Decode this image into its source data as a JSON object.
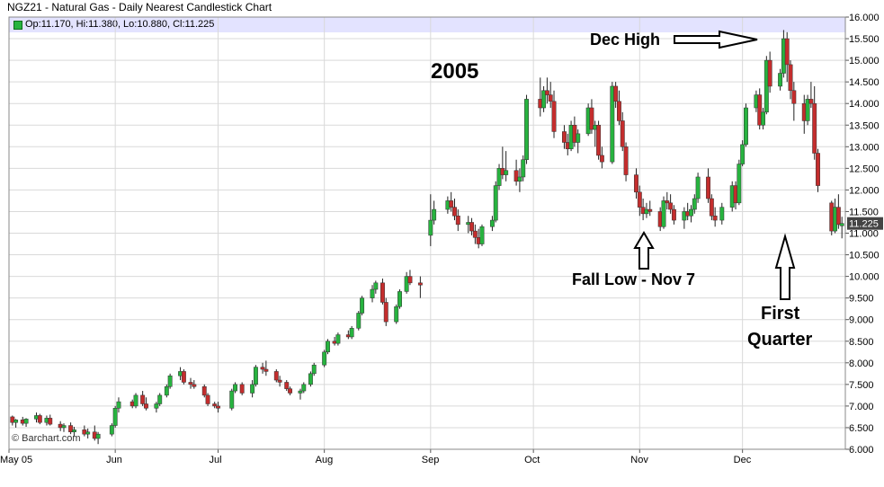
{
  "chart_data": {
    "type": "candlestick",
    "title": "NGZ21 - Natural Gas - Daily Nearest Candlestick Chart",
    "ohlc_legend": "Op:11.170, Hi:11.380, Lo:10.880, Cl:11.225",
    "last_price_label": "11.225",
    "copyright": "© Barchart.com",
    "ylim": [
      6.0,
      16.0
    ],
    "yticks": [
      "6.000",
      "6.500",
      "7.000",
      "7.500",
      "8.000",
      "8.500",
      "9.000",
      "9.500",
      "10.000",
      "10.500",
      "11.000",
      "11.500",
      "12.000",
      "12.500",
      "13.000",
      "13.500",
      "14.000",
      "14.500",
      "15.000",
      "15.500",
      "16.000"
    ],
    "x_labels": [
      {
        "label": "May 05",
        "date": "2005-05-01"
      },
      {
        "label": "Jun",
        "date": "2005-06-01"
      },
      {
        "label": "Jul",
        "date": "2005-07-01"
      },
      {
        "label": "Aug",
        "date": "2005-08-01"
      },
      {
        "label": "Sep",
        "date": "2005-09-01"
      },
      {
        "label": "Oct",
        "date": "2005-10-01"
      },
      {
        "label": "Nov",
        "date": "2005-11-01"
      },
      {
        "label": "Dec",
        "date": "2005-12-01"
      }
    ],
    "x_range": [
      "2005-05-01",
      "2005-12-31"
    ],
    "grid": true,
    "candles": [
      [
        "2005-05-02",
        6.75,
        6.78,
        6.55,
        6.62
      ],
      [
        "2005-05-03",
        6.62,
        6.7,
        6.5,
        6.68
      ],
      [
        "2005-05-05",
        6.68,
        6.75,
        6.55,
        6.6
      ],
      [
        "2005-05-06",
        6.6,
        6.72,
        6.52,
        6.7
      ],
      [
        "2005-05-09",
        6.7,
        6.85,
        6.62,
        6.78
      ],
      [
        "2005-05-10",
        6.78,
        6.82,
        6.58,
        6.62
      ],
      [
        "2005-05-12",
        6.62,
        6.78,
        6.55,
        6.72
      ],
      [
        "2005-05-13",
        6.72,
        6.8,
        6.55,
        6.58
      ],
      [
        "2005-05-16",
        6.58,
        6.65,
        6.42,
        6.5
      ],
      [
        "2005-05-17",
        6.5,
        6.6,
        6.4,
        6.55
      ],
      [
        "2005-05-19",
        6.55,
        6.62,
        6.35,
        6.4
      ],
      [
        "2005-05-20",
        6.4,
        6.52,
        6.3,
        6.45
      ],
      [
        "2005-05-23",
        6.45,
        6.55,
        6.3,
        6.35
      ],
      [
        "2005-05-24",
        6.35,
        6.48,
        6.25,
        6.4
      ],
      [
        "2005-05-26",
        6.4,
        6.55,
        6.2,
        6.25
      ],
      [
        "2005-05-27",
        6.25,
        6.4,
        6.12,
        6.35
      ],
      [
        "2005-05-31",
        6.35,
        6.6,
        6.3,
        6.55
      ],
      [
        "2005-06-01",
        6.55,
        7.0,
        6.5,
        6.95
      ],
      [
        "2005-06-02",
        6.95,
        7.2,
        6.85,
        7.1
      ],
      [
        "2005-06-06",
        7.1,
        7.15,
        6.95,
        7.0
      ],
      [
        "2005-06-07",
        7.0,
        7.3,
        6.95,
        7.25
      ],
      [
        "2005-06-09",
        7.25,
        7.35,
        7.0,
        7.05
      ],
      [
        "2005-06-10",
        7.05,
        7.2,
        6.9,
        6.95
      ],
      [
        "2005-06-13",
        6.95,
        7.1,
        6.85,
        7.05
      ],
      [
        "2005-06-14",
        7.05,
        7.3,
        7.0,
        7.25
      ],
      [
        "2005-06-16",
        7.25,
        7.5,
        7.2,
        7.45
      ],
      [
        "2005-06-17",
        7.45,
        7.75,
        7.4,
        7.7
      ],
      [
        "2005-06-20",
        7.7,
        7.9,
        7.6,
        7.8
      ],
      [
        "2005-06-21",
        7.8,
        7.85,
        7.5,
        7.55
      ],
      [
        "2005-06-23",
        7.55,
        7.65,
        7.4,
        7.5
      ],
      [
        "2005-06-24",
        7.5,
        7.6,
        7.4,
        7.45
      ],
      [
        "2005-06-27",
        7.45,
        7.5,
        7.2,
        7.25
      ],
      [
        "2005-06-28",
        7.25,
        7.3,
        7.0,
        7.05
      ],
      [
        "2005-06-30",
        7.05,
        7.1,
        6.95,
        7.0
      ],
      [
        "2005-07-01",
        7.0,
        7.1,
        6.85,
        6.95
      ],
      [
        "2005-07-05",
        6.95,
        7.4,
        6.9,
        7.35
      ],
      [
        "2005-07-06",
        7.35,
        7.55,
        7.3,
        7.5
      ],
      [
        "2005-07-08",
        7.5,
        7.55,
        7.25,
        7.3
      ],
      [
        "2005-07-11",
        7.3,
        7.6,
        7.2,
        7.5
      ],
      [
        "2005-07-12",
        7.5,
        7.95,
        7.45,
        7.9
      ],
      [
        "2005-07-14",
        7.9,
        8.0,
        7.75,
        7.85
      ],
      [
        "2005-07-15",
        7.85,
        8.05,
        7.7,
        7.8
      ],
      [
        "2005-07-18",
        7.8,
        7.85,
        7.55,
        7.6
      ],
      [
        "2005-07-19",
        7.6,
        7.7,
        7.45,
        7.55
      ],
      [
        "2005-07-21",
        7.55,
        7.6,
        7.35,
        7.4
      ],
      [
        "2005-07-22",
        7.4,
        7.45,
        7.25,
        7.3
      ],
      [
        "2005-07-25",
        7.3,
        7.4,
        7.15,
        7.35
      ],
      [
        "2005-07-26",
        7.35,
        7.55,
        7.3,
        7.5
      ],
      [
        "2005-07-28",
        7.5,
        7.8,
        7.45,
        7.75
      ],
      [
        "2005-07-29",
        7.75,
        8.0,
        7.7,
        7.95
      ],
      [
        "2005-08-01",
        7.95,
        8.3,
        7.9,
        8.25
      ],
      [
        "2005-08-02",
        8.25,
        8.55,
        8.2,
        8.5
      ],
      [
        "2005-08-04",
        8.5,
        8.6,
        8.4,
        8.45
      ],
      [
        "2005-08-05",
        8.45,
        8.7,
        8.4,
        8.65
      ],
      [
        "2005-08-08",
        8.65,
        8.75,
        8.55,
        8.6
      ],
      [
        "2005-08-09",
        8.6,
        8.85,
        8.55,
        8.8
      ],
      [
        "2005-08-11",
        8.8,
        9.2,
        8.75,
        9.15
      ],
      [
        "2005-08-12",
        9.15,
        9.55,
        9.1,
        9.5
      ],
      [
        "2005-08-15",
        9.5,
        9.8,
        9.4,
        9.7
      ],
      [
        "2005-08-16",
        9.7,
        9.9,
        9.6,
        9.85
      ],
      [
        "2005-08-18",
        9.85,
        9.95,
        9.35,
        9.4
      ],
      [
        "2005-08-19",
        9.4,
        9.5,
        8.85,
        8.95
      ],
      [
        "2005-08-22",
        8.95,
        9.35,
        8.9,
        9.3
      ],
      [
        "2005-08-23",
        9.3,
        9.7,
        9.25,
        9.65
      ],
      [
        "2005-08-25",
        9.65,
        10.1,
        9.6,
        10.0
      ],
      [
        "2005-08-26",
        10.0,
        10.15,
        9.8,
        9.85
      ],
      [
        "2005-08-29",
        9.85,
        10.0,
        9.5,
        9.8
      ],
      [
        "2005-09-01",
        10.95,
        11.9,
        10.7,
        11.3
      ],
      [
        "2005-09-02",
        11.3,
        11.75,
        11.2,
        11.55
      ],
      [
        "2005-09-06",
        11.55,
        11.85,
        11.45,
        11.75
      ],
      [
        "2005-09-07",
        11.75,
        11.95,
        11.5,
        11.6
      ],
      [
        "2005-09-08",
        11.6,
        11.8,
        11.3,
        11.4
      ],
      [
        "2005-09-09",
        11.4,
        11.55,
        11.05,
        11.2
      ],
      [
        "2005-09-12",
        11.2,
        11.4,
        11.0,
        11.25
      ],
      [
        "2005-09-13",
        11.25,
        11.35,
        10.95,
        11.05
      ],
      [
        "2005-09-14",
        11.05,
        11.2,
        10.75,
        10.9
      ],
      [
        "2005-09-15",
        10.9,
        11.1,
        10.65,
        10.75
      ],
      [
        "2005-09-16",
        10.75,
        11.2,
        10.7,
        11.15
      ],
      [
        "2005-09-19",
        11.15,
        11.4,
        11.05,
        11.3
      ],
      [
        "2005-09-20",
        11.3,
        12.2,
        11.25,
        12.1
      ],
      [
        "2005-09-21",
        12.1,
        12.6,
        12.0,
        12.5
      ],
      [
        "2005-09-22",
        12.5,
        13.0,
        12.25,
        12.35
      ],
      [
        "2005-09-23",
        12.35,
        12.9,
        12.2,
        12.45
      ],
      [
        "2005-09-26",
        12.45,
        12.7,
        12.1,
        12.2
      ],
      [
        "2005-09-27",
        12.2,
        12.5,
        11.95,
        12.3
      ],
      [
        "2005-09-28",
        12.3,
        12.8,
        12.2,
        12.7
      ],
      [
        "2005-09-29",
        12.7,
        14.2,
        12.6,
        14.1
      ],
      [
        "2005-10-03",
        14.1,
        14.6,
        13.7,
        13.9
      ],
      [
        "2005-10-04",
        13.9,
        14.4,
        13.8,
        14.3
      ],
      [
        "2005-10-05",
        14.3,
        14.6,
        14.0,
        14.2
      ],
      [
        "2005-10-06",
        14.2,
        14.5,
        13.9,
        14.05
      ],
      [
        "2005-10-07",
        14.05,
        14.3,
        13.2,
        13.35
      ],
      [
        "2005-10-10",
        13.35,
        13.5,
        12.95,
        13.1
      ],
      [
        "2005-10-11",
        13.1,
        13.3,
        12.8,
        12.95
      ],
      [
        "2005-10-12",
        12.95,
        13.6,
        12.9,
        13.5
      ],
      [
        "2005-10-13",
        13.5,
        13.7,
        13.0,
        13.1
      ],
      [
        "2005-10-14",
        13.1,
        13.4,
        12.85,
        13.3
      ],
      [
        "2005-10-17",
        13.3,
        14.0,
        13.25,
        13.9
      ],
      [
        "2005-10-18",
        13.9,
        14.1,
        13.3,
        13.4
      ],
      [
        "2005-10-19",
        13.4,
        13.6,
        13.0,
        13.5
      ],
      [
        "2005-10-20",
        13.5,
        13.6,
        12.7,
        12.8
      ],
      [
        "2005-10-21",
        12.8,
        13.0,
        12.5,
        12.65
      ],
      [
        "2005-10-24",
        12.65,
        14.5,
        12.6,
        14.4
      ],
      [
        "2005-10-25",
        14.4,
        14.5,
        13.9,
        14.05
      ],
      [
        "2005-10-26",
        14.05,
        14.3,
        13.5,
        13.6
      ],
      [
        "2005-10-27",
        13.6,
        13.8,
        12.9,
        13.0
      ],
      [
        "2005-10-28",
        13.0,
        13.1,
        12.2,
        12.35
      ],
      [
        "2005-10-31",
        12.35,
        12.5,
        11.8,
        11.95
      ],
      [
        "2005-11-01",
        11.95,
        12.1,
        11.4,
        11.6
      ],
      [
        "2005-11-02",
        11.6,
        11.8,
        11.3,
        11.45
      ],
      [
        "2005-11-03",
        11.45,
        11.7,
        11.35,
        11.55
      ],
      [
        "2005-11-04",
        11.55,
        11.75,
        11.4,
        11.5
      ],
      [
        "2005-11-07",
        11.5,
        11.6,
        11.05,
        11.15
      ],
      [
        "2005-11-08",
        11.15,
        11.85,
        11.1,
        11.75
      ],
      [
        "2005-11-09",
        11.75,
        11.95,
        11.55,
        11.7
      ],
      [
        "2005-11-10",
        11.7,
        11.9,
        11.45,
        11.55
      ],
      [
        "2005-11-11",
        11.55,
        11.65,
        11.2,
        11.3
      ],
      [
        "2005-11-14",
        11.3,
        11.6,
        11.1,
        11.5
      ],
      [
        "2005-11-15",
        11.5,
        11.7,
        11.3,
        11.4
      ],
      [
        "2005-11-16",
        11.4,
        11.65,
        11.25,
        11.55
      ],
      [
        "2005-11-17",
        11.55,
        11.9,
        11.45,
        11.8
      ],
      [
        "2005-11-18",
        11.8,
        12.4,
        11.7,
        12.3
      ],
      [
        "2005-11-21",
        12.3,
        12.5,
        11.7,
        11.8
      ],
      [
        "2005-11-22",
        11.8,
        11.9,
        11.3,
        11.4
      ],
      [
        "2005-11-23",
        11.4,
        11.6,
        11.15,
        11.3
      ],
      [
        "2005-11-25",
        11.3,
        11.7,
        11.2,
        11.6
      ],
      [
        "2005-11-28",
        11.6,
        12.2,
        11.5,
        12.1
      ],
      [
        "2005-11-29",
        12.1,
        12.2,
        11.55,
        11.7
      ],
      [
        "2005-11-30",
        11.7,
        12.7,
        11.65,
        12.6
      ],
      [
        "2005-12-01",
        12.6,
        13.15,
        12.55,
        13.05
      ],
      [
        "2005-12-02",
        13.05,
        14.0,
        13.0,
        13.9
      ],
      [
        "2005-12-05",
        13.9,
        14.3,
        13.8,
        14.2
      ],
      [
        "2005-12-06",
        14.2,
        14.35,
        13.4,
        13.5
      ],
      [
        "2005-12-07",
        13.5,
        13.9,
        13.4,
        13.8
      ],
      [
        "2005-12-08",
        13.8,
        15.1,
        13.75,
        15.0
      ],
      [
        "2005-12-09",
        15.0,
        15.2,
        14.25,
        14.4
      ],
      [
        "2005-12-12",
        14.4,
        14.8,
        14.3,
        14.7
      ],
      [
        "2005-12-13",
        14.7,
        15.7,
        14.6,
        15.5
      ],
      [
        "2005-12-14",
        15.5,
        15.65,
        14.5,
        14.9
      ],
      [
        "2005-12-15",
        14.9,
        15.0,
        14.1,
        14.3
      ],
      [
        "2005-12-16",
        14.3,
        14.5,
        13.6,
        14.0
      ],
      [
        "2005-12-19",
        14.0,
        14.2,
        13.3,
        13.6
      ],
      [
        "2005-12-20",
        13.6,
        14.2,
        13.5,
        14.1
      ],
      [
        "2005-12-21",
        14.1,
        14.5,
        13.9,
        14.0
      ],
      [
        "2005-12-22",
        14.0,
        14.4,
        12.7,
        12.85
      ],
      [
        "2005-12-23",
        12.85,
        12.95,
        11.95,
        12.1
      ],
      [
        "2005-12-27",
        11.7,
        11.75,
        10.95,
        11.05
      ],
      [
        "2005-12-28",
        11.05,
        11.8,
        11.0,
        11.6
      ],
      [
        "2005-12-29",
        11.6,
        11.9,
        11.1,
        11.2
      ],
      [
        "2005-12-30",
        11.17,
        11.38,
        10.88,
        11.225
      ]
    ],
    "annotations": [
      {
        "text": "2005"
      },
      {
        "text": "Dec High"
      },
      {
        "text": "Fall Low - Nov 7"
      },
      {
        "text": "First",
        "text2": "Quarter"
      }
    ],
    "colors": {
      "up": "#27b33f",
      "down": "#c42d2d",
      "grid": "#d9d9d9",
      "legend_bg": "#e3e3ff"
    }
  }
}
